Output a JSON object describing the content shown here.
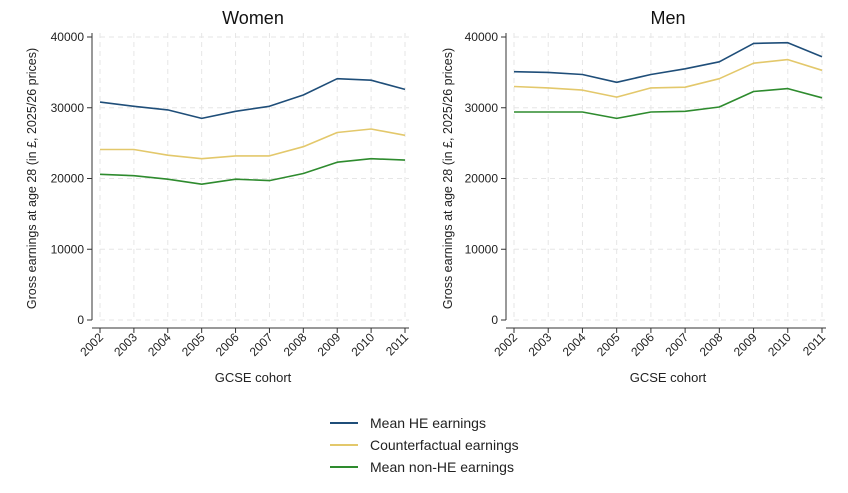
{
  "chart_data": [
    {
      "type": "line",
      "title": "Women",
      "xlabel": "GCSE cohort",
      "ylabel": "Gross earnings at age 28 (in £, 2025/26 prices)",
      "x": [
        "2002",
        "2003",
        "2004",
        "2005",
        "2006",
        "2007",
        "2008",
        "2009",
        "2010",
        "2011"
      ],
      "ylim": [
        0,
        40000
      ],
      "yticks": [
        "0",
        "10000",
        "20000",
        "30000",
        "40000"
      ],
      "grid": true,
      "series": [
        {
          "name": "Mean HE earnings",
          "color": "#1f4e79",
          "values": [
            30800,
            30200,
            29700,
            28500,
            29500,
            30200,
            31800,
            34100,
            33900,
            32600
          ]
        },
        {
          "name": "Counterfactual earnings",
          "color": "#e3c86b",
          "values": [
            24100,
            24100,
            23300,
            22800,
            23200,
            23200,
            24500,
            26500,
            27000,
            26100
          ]
        },
        {
          "name": "Mean non-HE earnings",
          "color": "#2e8b2e",
          "values": [
            20600,
            20400,
            19900,
            19200,
            19900,
            19700,
            20700,
            22300,
            22800,
            22600
          ]
        }
      ]
    },
    {
      "type": "line",
      "title": "Men",
      "xlabel": "GCSE cohort",
      "ylabel": "Gross earnings at age 28 (in £, 2025/26 prices)",
      "x": [
        "2002",
        "2003",
        "2004",
        "2005",
        "2006",
        "2007",
        "2008",
        "2009",
        "2010",
        "2011"
      ],
      "ylim": [
        0,
        40000
      ],
      "yticks": [
        "0",
        "10000",
        "20000",
        "30000",
        "40000"
      ],
      "grid": true,
      "series": [
        {
          "name": "Mean HE earnings",
          "color": "#1f4e79",
          "values": [
            35100,
            35000,
            34700,
            33600,
            34700,
            35500,
            36500,
            39100,
            39200,
            37200
          ]
        },
        {
          "name": "Counterfactual earnings",
          "color": "#e3c86b",
          "values": [
            33000,
            32800,
            32500,
            31500,
            32800,
            32900,
            34100,
            36300,
            36800,
            35300
          ]
        },
        {
          "name": "Mean non-HE earnings",
          "color": "#2e8b2e",
          "values": [
            29400,
            29400,
            29400,
            28500,
            29400,
            29500,
            30100,
            32300,
            32700,
            31400
          ]
        }
      ]
    }
  ],
  "legend": {
    "position": "bottom-center",
    "items": [
      {
        "label": "Mean HE earnings",
        "color": "#1f4e79"
      },
      {
        "label": "Counterfactual earnings",
        "color": "#e3c86b"
      },
      {
        "label": "Mean non-HE earnings",
        "color": "#2e8b2e"
      }
    ]
  }
}
